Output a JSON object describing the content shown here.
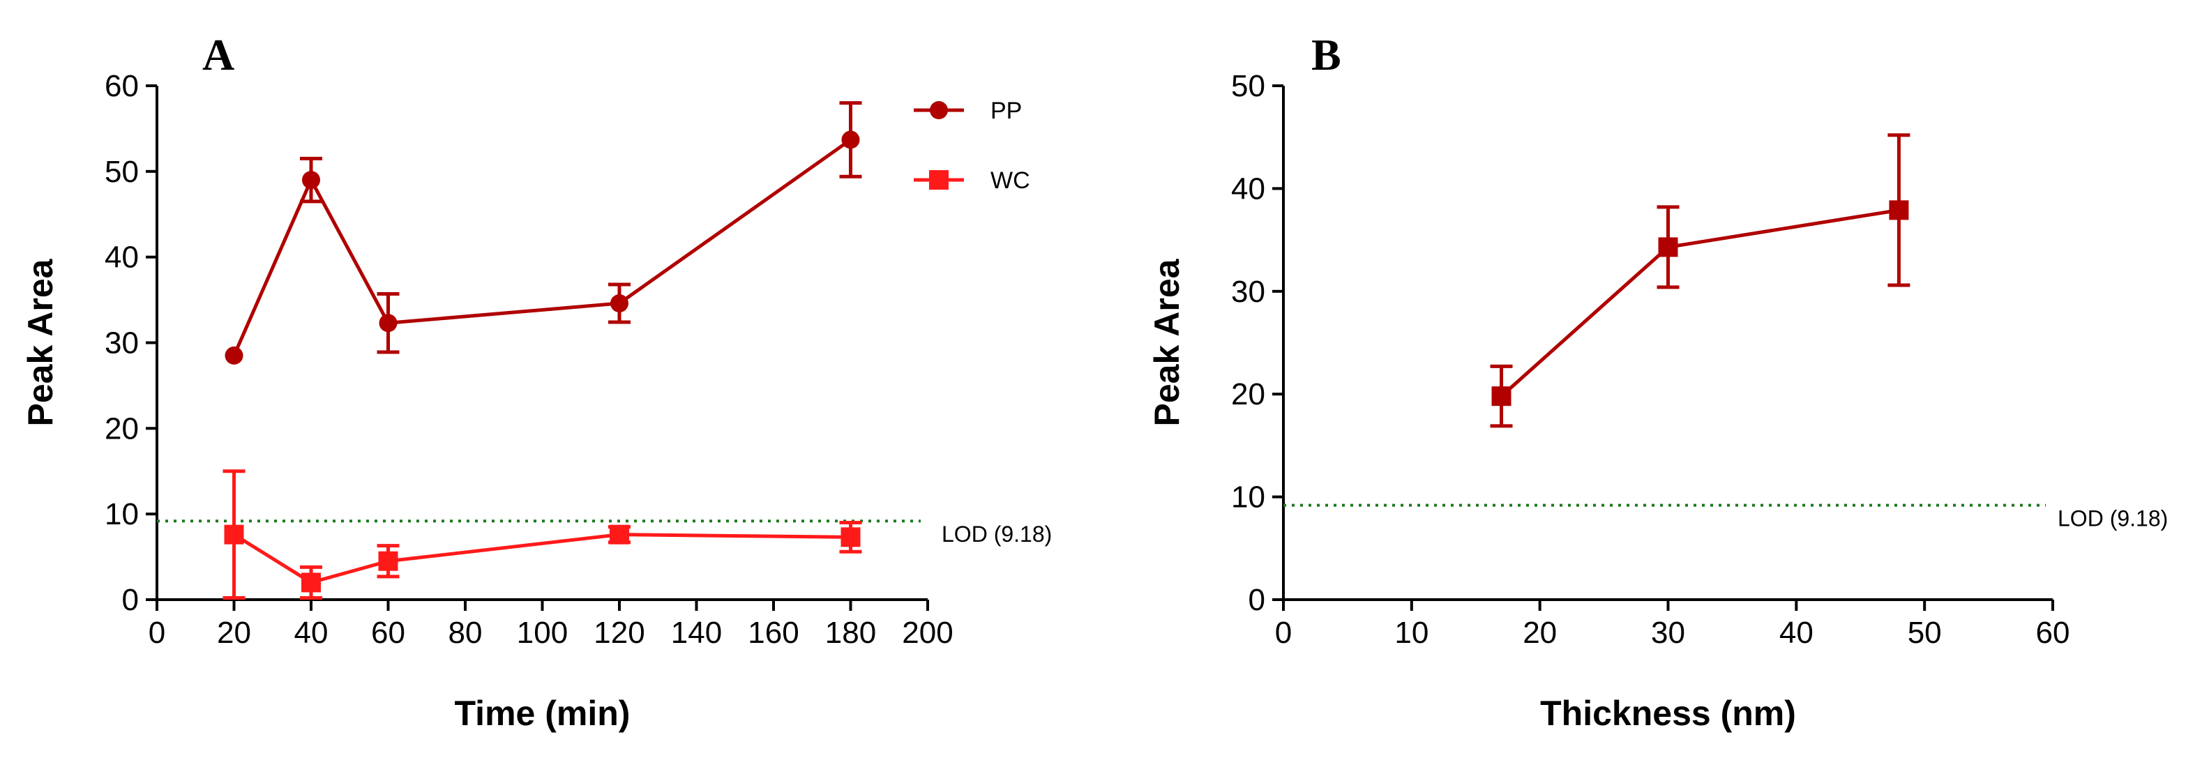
{
  "colors": {
    "pp": "#b00000",
    "wc": "#ff1a1a",
    "panel_b": "#b00000",
    "lod": "#1b7a1b",
    "axis": "#000000"
  },
  "chart_data": [
    {
      "panel": "A",
      "type": "line",
      "title": "",
      "xlabel": "Time (min)",
      "ylabel": "Peak Area",
      "xlim": [
        0,
        200
      ],
      "ylim": [
        0,
        60
      ],
      "xticks": [
        0,
        20,
        40,
        60,
        80,
        100,
        120,
        140,
        160,
        180,
        200
      ],
      "yticks": [
        0,
        10,
        20,
        30,
        40,
        50,
        60
      ],
      "grid": false,
      "legend": "top-right",
      "lod": {
        "value": 9.18,
        "label": "LOD (9.18)"
      },
      "series": [
        {
          "name": "PP",
          "marker": "circle",
          "color": "#b00000",
          "x": [
            20,
            40,
            60,
            120,
            180
          ],
          "y": [
            28.5,
            49,
            32.3,
            34.6,
            53.7
          ],
          "err": [
            0,
            2.5,
            3.4,
            2.2,
            4.3
          ]
        },
        {
          "name": "WC",
          "marker": "square",
          "color": "#ff1a1a",
          "x": [
            20,
            40,
            60,
            120,
            180
          ],
          "y": [
            7.6,
            2.0,
            4.5,
            7.6,
            7.3
          ],
          "err": [
            7.4,
            1.8,
            1.8,
            0.9,
            1.7
          ]
        }
      ]
    },
    {
      "panel": "B",
      "type": "line",
      "title": "",
      "xlabel": "Thickness (nm)",
      "ylabel": "Peak Area",
      "xlim": [
        0,
        60
      ],
      "ylim": [
        0,
        50
      ],
      "xticks": [
        0,
        10,
        20,
        30,
        40,
        50,
        60
      ],
      "yticks": [
        0,
        10,
        20,
        30,
        40,
        50
      ],
      "grid": false,
      "legend": "none",
      "lod": {
        "value": 9.18,
        "label": "LOD (9.18)"
      },
      "series": [
        {
          "name": "",
          "marker": "square",
          "color": "#b00000",
          "x": [
            17,
            30,
            48
          ],
          "y": [
            19.8,
            34.3,
            37.9
          ],
          "err": [
            2.9,
            3.9,
            7.3
          ]
        }
      ]
    }
  ]
}
